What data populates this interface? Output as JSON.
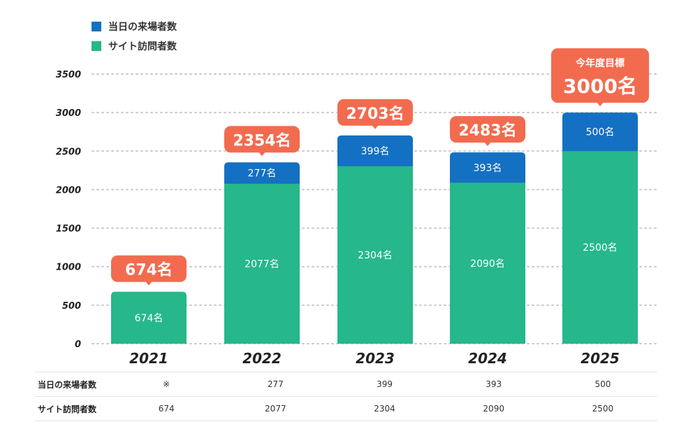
{
  "legend": [
    {
      "label": "当日の来場者数",
      "color": "#1470C2"
    },
    {
      "label": "サイト訪問者数",
      "color": "#26B78A"
    }
  ],
  "chart_data": {
    "type": "bar",
    "stacked": true,
    "categories": [
      "2021",
      "2022",
      "2023",
      "2024",
      "2025"
    ],
    "series": [
      {
        "name": "サイト訪問者数",
        "color": "#26B78A",
        "values": [
          674,
          2077,
          2304,
          2090,
          2500
        ],
        "labels": [
          "674名",
          "2077名",
          "2304名",
          "2090名",
          "2500名"
        ]
      },
      {
        "name": "当日の来場者数",
        "color": "#1470C2",
        "values": [
          null,
          277,
          399,
          393,
          500
        ],
        "labels": [
          "",
          "277名",
          "399名",
          "393名",
          "500名"
        ]
      }
    ],
    "totals": [
      "674名",
      "2354名",
      "2703名",
      "2483名",
      "3000名"
    ],
    "target_caption": "今年度目標",
    "callout_color": "#F26B4F",
    "yticks": [
      "0",
      "500",
      "1000",
      "1500",
      "2000",
      "2500",
      "3000",
      "3500"
    ],
    "ylim": [
      0,
      3500
    ],
    "grid": true,
    "legend_position": "top-left"
  },
  "table": {
    "rows": [
      {
        "header": "当日の来場者数",
        "cells": [
          "※",
          "277",
          "399",
          "393",
          "500"
        ]
      },
      {
        "header": "サイト訪問者数",
        "cells": [
          "674",
          "2077",
          "2304",
          "2090",
          "2500"
        ]
      }
    ]
  }
}
